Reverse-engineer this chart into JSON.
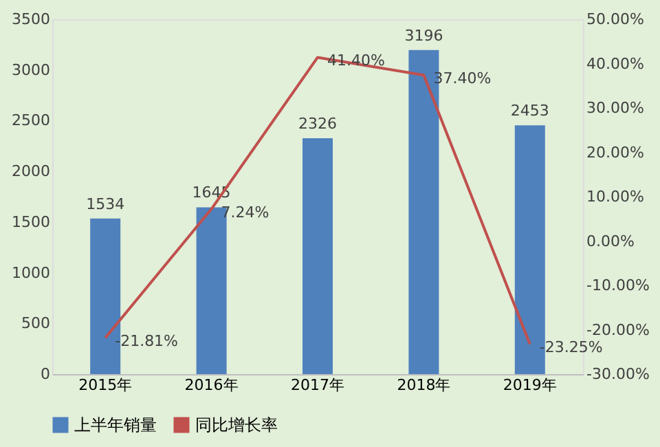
{
  "chart_data": {
    "type": "bar",
    "categories": [
      "2015年",
      "2016年",
      "2017年",
      "2018年",
      "2019年"
    ],
    "series": [
      {
        "name": "上半年销量",
        "color": "#4f81bd",
        "values": [
          1534,
          1645,
          2326,
          3196,
          2453
        ],
        "value_labels": [
          "1534",
          "1645",
          "2326",
          "3196",
          "2453"
        ]
      },
      {
        "name": "同比增长率",
        "type": "line",
        "axis": "y2",
        "color": "#c0504d",
        "values": [
          -21.81,
          7.24,
          41.4,
          37.4,
          -23.25
        ],
        "value_labels": [
          "-21.81%",
          "7.24%",
          "41.40%",
          "37.40%",
          "-23.25%"
        ]
      }
    ],
    "ylim": [
      0,
      3500
    ],
    "yticks": [
      0,
      500,
      1000,
      1500,
      2000,
      2500,
      3000,
      3500
    ],
    "y2lim": [
      -30,
      50
    ],
    "y2ticks": [
      {
        "value": -30,
        "label": "-30.00%"
      },
      {
        "value": -20,
        "label": "-20.00%"
      },
      {
        "value": -10,
        "label": "-10.00%"
      },
      {
        "value": 0,
        "label": "0.00%"
      },
      {
        "value": 10,
        "label": "10.00%"
      },
      {
        "value": 20,
        "label": "20.00%"
      },
      {
        "value": 30,
        "label": "30.00%"
      },
      {
        "value": 40,
        "label": "40.00%"
      },
      {
        "value": 50,
        "label": "50.00%"
      }
    ],
    "grid": false,
    "legend": "bottom",
    "marker": "none",
    "line_style": "solid"
  }
}
